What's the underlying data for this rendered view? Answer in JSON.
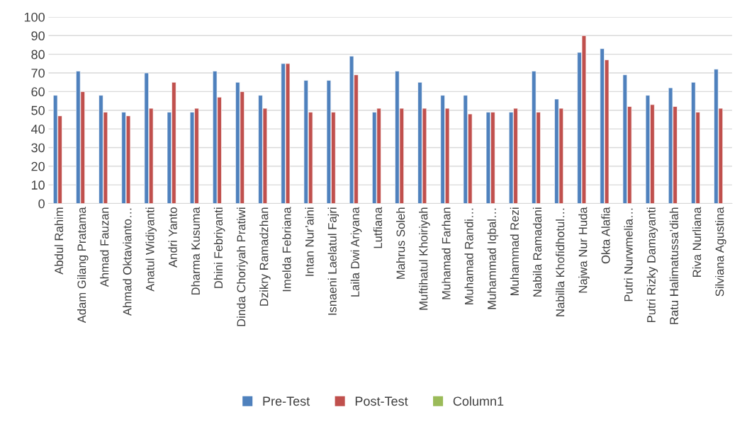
{
  "chart_data": {
    "type": "bar",
    "categories": [
      "Abdul Rahim",
      "Adam Gilang Pratama",
      "Ahmad Fauzan",
      "Ahmad Oktavianto…",
      "Anatul Widiyanti",
      "Andri Yanto",
      "Dharma Kusuma",
      "Dhini Febriyanti",
      "Dinda Choriyah Pratiwi",
      "Dzikry Ramadzhan",
      "Imelda Febriana",
      "Intan Nur’aini",
      "Isnaeni Laelatul Fajri",
      "Laila Dwi Ariyana",
      "Lutfiana",
      "Mahrus Soleh",
      "Muftihatul Khoiriyah",
      "Muhamad Farhan",
      "Muhamad Randi…",
      "Muhammad Iqbal…",
      "Muhammad Rezi",
      "Nabila Ramadani",
      "Nabilla Khofidhotul…",
      "Najwa Nur Huda",
      "Okta Alafia",
      "Putri Nurwmelia…",
      "Putri Rizky Damayanti",
      "Ratu Halimatussa’diah",
      "Riva Nurliana",
      "Silviana Agustina"
    ],
    "series": [
      {
        "name": "Pre-Test",
        "color": "#4f81bd",
        "values": [
          58,
          71,
          58,
          49,
          70,
          49,
          49,
          71,
          65,
          58,
          75,
          66,
          66,
          79,
          49,
          71,
          65,
          58,
          58,
          49,
          49,
          71,
          56,
          81,
          83,
          69,
          58,
          62,
          65,
          72
        ]
      },
      {
        "name": "Post-Test",
        "color": "#c0504d",
        "values": [
          47,
          60,
          49,
          47,
          51,
          65,
          51,
          57,
          60,
          51,
          75,
          49,
          49,
          69,
          51,
          51,
          51,
          51,
          48,
          49,
          51,
          49,
          51,
          90,
          77,
          52,
          53,
          52,
          49,
          51
        ]
      },
      {
        "name": "Column1",
        "color": "#9bbb59",
        "values": [
          null,
          null,
          null,
          null,
          null,
          null,
          null,
          null,
          null,
          null,
          null,
          null,
          null,
          null,
          null,
          null,
          null,
          null,
          null,
          null,
          null,
          null,
          null,
          null,
          null,
          null,
          null,
          null,
          null,
          null
        ]
      }
    ],
    "ylim": [
      0,
      100
    ],
    "yticks": [
      0,
      10,
      20,
      30,
      40,
      50,
      60,
      70,
      80,
      90,
      100
    ],
    "grid": "y",
    "legend": "bottom"
  }
}
